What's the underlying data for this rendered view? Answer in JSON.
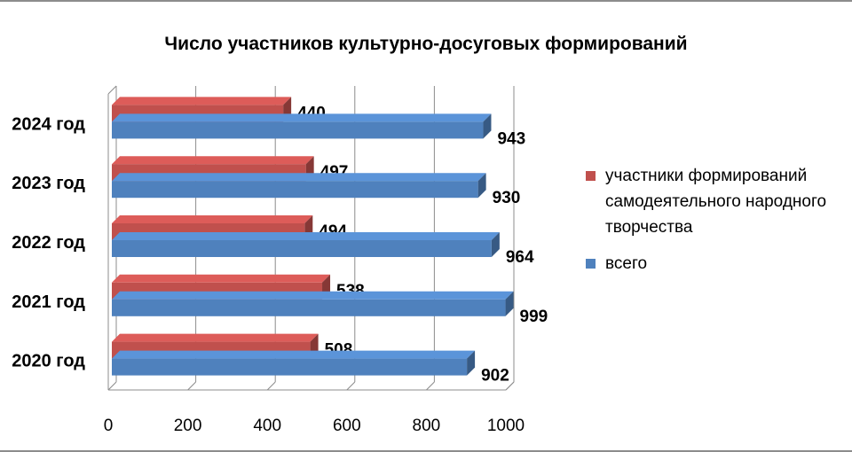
{
  "chart_data": {
    "type": "bar",
    "orientation": "horizontal",
    "title": "Число участников культурно-досуговых формирований",
    "categories": [
      "2024 год",
      "2023 год",
      "2022 год",
      "2021 год",
      "2020 год"
    ],
    "series": [
      {
        "name": "участники формирований самодеятельного народного творчества",
        "color": "#c0504d",
        "values": [
          440,
          497,
          494,
          538,
          508
        ]
      },
      {
        "name": "всего",
        "color": "#4f81bd",
        "values": [
          943,
          930,
          964,
          999,
          902
        ]
      }
    ],
    "xlim": [
      0,
      1000
    ],
    "xticks": [
      0,
      200,
      400,
      600,
      800,
      1000
    ],
    "grid": true,
    "three_d": true,
    "legend_position": "right"
  }
}
